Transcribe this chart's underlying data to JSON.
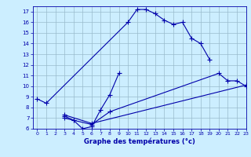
{
  "xlabel": "Graphe des températures (°c)",
  "bg_color": "#cceeff",
  "grid_color": "#99bbcc",
  "line_color": "#0000aa",
  "xlim": [
    -0.5,
    23
  ],
  "ylim": [
    6,
    17.5
  ],
  "yticks": [
    6,
    7,
    8,
    9,
    10,
    11,
    12,
    13,
    14,
    15,
    16,
    17
  ],
  "xticks": [
    0,
    1,
    2,
    3,
    4,
    5,
    6,
    7,
    8,
    9,
    10,
    11,
    12,
    13,
    14,
    15,
    16,
    17,
    18,
    19,
    20,
    21,
    22,
    23
  ],
  "lines": [
    {
      "x": [
        0,
        1,
        10,
        11,
        12,
        13,
        14,
        15,
        16,
        17,
        18,
        19
      ],
      "y": [
        8.8,
        8.4,
        16.0,
        17.2,
        17.2,
        16.8,
        16.2,
        15.8,
        16.0,
        14.5,
        14.0,
        12.5
      ]
    },
    {
      "x": [
        3,
        4,
        5,
        6,
        7,
        8,
        9
      ],
      "y": [
        7.0,
        6.8,
        6.0,
        6.2,
        7.8,
        9.2,
        11.2
      ]
    },
    {
      "x": [
        3,
        4,
        6,
        8,
        20,
        21,
        22,
        23
      ],
      "y": [
        7.2,
        6.8,
        6.4,
        7.6,
        11.2,
        10.5,
        10.5,
        10.0
      ]
    },
    {
      "x": [
        3,
        6,
        23
      ],
      "y": [
        7.3,
        6.5,
        10.1
      ]
    }
  ]
}
